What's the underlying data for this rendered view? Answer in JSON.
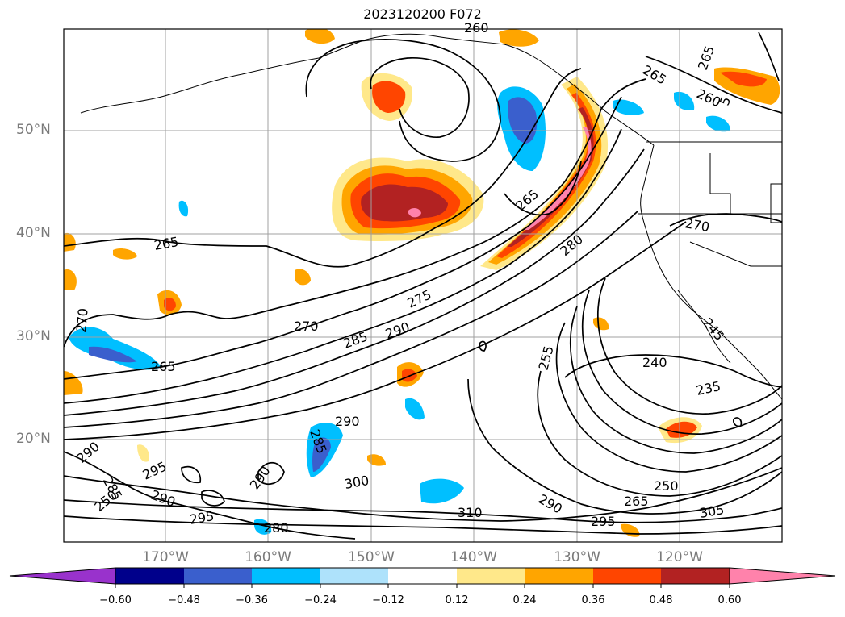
{
  "title": "2023120200 F072",
  "map": {
    "lat_labels": [
      "50°N",
      "40°N",
      "30°N",
      "20°N"
    ],
    "lon_labels": [
      "170°W",
      "160°W",
      "150°W",
      "140°W",
      "130°W",
      "120°W"
    ],
    "contour_labels": [
      "265",
      "265",
      "270",
      "270",
      "265",
      "275",
      "285",
      "290",
      "280",
      "265",
      "270",
      "260",
      "265",
      "240",
      "235",
      "250",
      "255",
      "265",
      "300",
      "310",
      "295",
      "305",
      "290",
      "290",
      "295",
      "295",
      "290",
      "280",
      "290",
      "285",
      "285",
      "290",
      "250",
      "245",
      "260",
      "5"
    ]
  },
  "colorbar": {
    "ticks": [
      "−0.60",
      "−0.48",
      "−0.36",
      "−0.24",
      "−0.12",
      "0.12",
      "0.24",
      "0.36",
      "0.48",
      "0.60"
    ],
    "colors": [
      "#9932cc",
      "#00008b",
      "#3a5fcd",
      "#00bfff",
      "#aee2fb",
      "#ffffff",
      "#ffe88a",
      "#ffa500",
      "#ff4500",
      "#b22222",
      "#ff82ab"
    ]
  }
}
